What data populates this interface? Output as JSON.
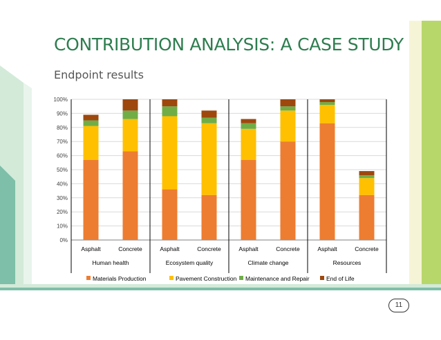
{
  "slide": {
    "title": "CONTRIBUTION ANALYSIS: A CASE STUDY",
    "subtitle": "Endpoint results",
    "page_number": "11"
  },
  "colors": {
    "title": "#2e7d4f",
    "band_light": "#d3ead9",
    "band_teal": "#7dbfa8",
    "band_green": "#b8d76b",
    "band_yellow": "#f6f4d6"
  },
  "chart_data": {
    "type": "bar",
    "stacked": true,
    "grid": true,
    "legend_position": "bottom",
    "ylim": [
      0,
      100
    ],
    "y_ticks": [
      "0%",
      "10%",
      "20%",
      "30%",
      "40%",
      "50%",
      "60%",
      "70%",
      "80%",
      "90%",
      "100%"
    ],
    "categories": [
      "Asphalt",
      "Concrete",
      "Asphalt",
      "Concrete",
      "Asphalt",
      "Concrete",
      "Asphalt",
      "Concrete"
    ],
    "groups": [
      "Human health",
      "Ecosystem quality",
      "Climate change",
      "Resources"
    ],
    "series": [
      {
        "name": "Materials Production",
        "color": "#ed7d31",
        "values": [
          57,
          63,
          36,
          32,
          57,
          70,
          83,
          32
        ]
      },
      {
        "name": "Pavement Construction",
        "color": "#ffc000",
        "values": [
          24,
          23,
          52,
          51,
          22,
          22,
          13,
          12
        ]
      },
      {
        "name": "Maintenance and Repair",
        "color": "#70ad47",
        "values": [
          4,
          6,
          7,
          4,
          4,
          3,
          2,
          2
        ]
      },
      {
        "name": "End of Life",
        "color": "#9e480e",
        "values": [
          4,
          8,
          5,
          5,
          3,
          5,
          2,
          3
        ]
      }
    ]
  }
}
